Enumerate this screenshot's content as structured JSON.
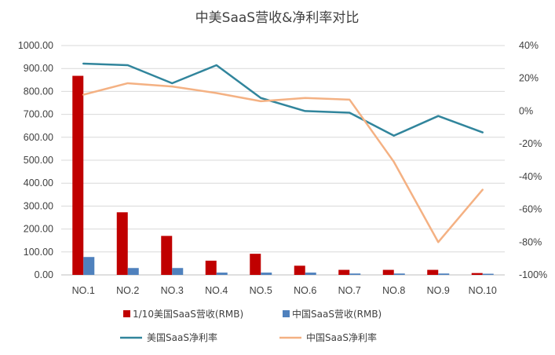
{
  "chart_data": {
    "type": "bar",
    "title": "中美SaaS营收&净利率对比",
    "categories": [
      "NO.1",
      "NO.2",
      "NO.3",
      "NO.4",
      "NO.5",
      "NO.6",
      "NO.7",
      "NO.8",
      "NO.9",
      "NO.10"
    ],
    "y_left": {
      "ticks": [
        "0.00",
        "100.00",
        "200.00",
        "300.00",
        "400.00",
        "500.00",
        "600.00",
        "700.00",
        "800.00",
        "900.00",
        "1000.00"
      ],
      "ylim": [
        0,
        1000
      ]
    },
    "y_right": {
      "ticks": [
        "-100%",
        "-80%",
        "-60%",
        "-40%",
        "-20%",
        "0%",
        "20%",
        "40%"
      ],
      "ylim": [
        -100,
        40
      ],
      "unit": "%"
    },
    "series": [
      {
        "name": "1/10美国SaaS营收(RMB)",
        "kind": "bar",
        "axis": "left",
        "color": "#c00000",
        "values": [
          868,
          273,
          170,
          62,
          92,
          40,
          22,
          22,
          22,
          8
        ]
      },
      {
        "name": "中国SaaS营收(RMB)",
        "kind": "bar",
        "axis": "left",
        "color": "#4f81bd",
        "values": [
          78,
          30,
          30,
          10,
          10,
          10,
          6,
          6,
          6,
          5
        ]
      },
      {
        "name": "美国SaaS净利率",
        "kind": "line",
        "axis": "right",
        "color": "#31859c",
        "values": [
          29,
          28,
          17,
          28,
          8,
          0,
          -1,
          -15,
          -3,
          -13
        ]
      },
      {
        "name": "中国SaaS净利率",
        "kind": "line",
        "axis": "right",
        "color": "#f4b183",
        "values": [
          10,
          17,
          15,
          11,
          6,
          8,
          7,
          -31,
          -80,
          -48
        ]
      }
    ],
    "legend_position": "bottom",
    "grid": true
  }
}
